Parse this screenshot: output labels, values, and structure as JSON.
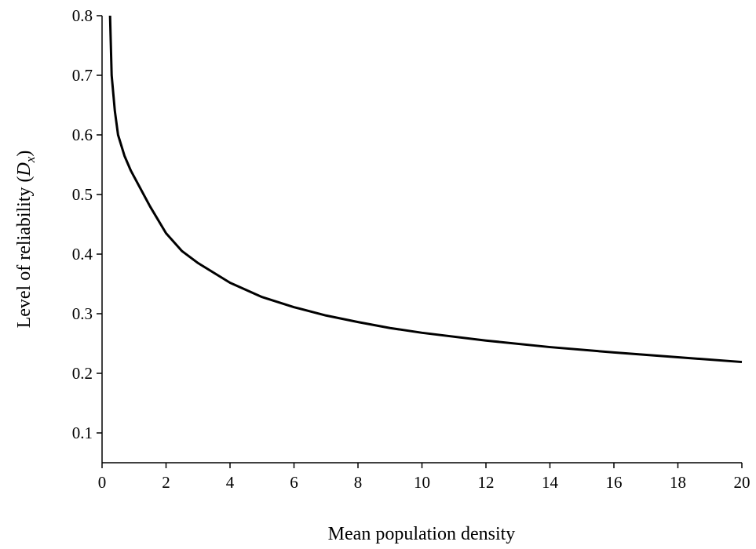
{
  "chart_data": {
    "type": "line",
    "xlabel": "Mean population density",
    "ylabel_parts": [
      "Level of reliability (",
      "D",
      "x",
      ")"
    ],
    "x": [
      0.25,
      0.3,
      0.4,
      0.5,
      0.7,
      0.9,
      1,
      1.5,
      2,
      2.5,
      3,
      4,
      5,
      6,
      7,
      8,
      9,
      10,
      12,
      14,
      16,
      18,
      20
    ],
    "series": [
      {
        "color": "#000000",
        "values": [
          0.8,
          0.7,
          0.64,
          0.6,
          0.565,
          0.54,
          0.53,
          0.48,
          0.435,
          0.405,
          0.385,
          0.352,
          0.328,
          0.311,
          0.297,
          0.286,
          0.276,
          0.268,
          0.255,
          0.244,
          0.235,
          0.227,
          0.219
        ]
      }
    ],
    "xlim": [
      0,
      20
    ],
    "xticks": [
      0,
      2,
      4,
      6,
      8,
      10,
      12,
      14,
      16,
      18,
      20
    ],
    "ylim": [
      0.05,
      0.8
    ],
    "yticks": [
      0.1,
      0.2,
      0.3,
      0.4,
      0.5,
      0.6,
      0.7,
      0.8
    ]
  }
}
